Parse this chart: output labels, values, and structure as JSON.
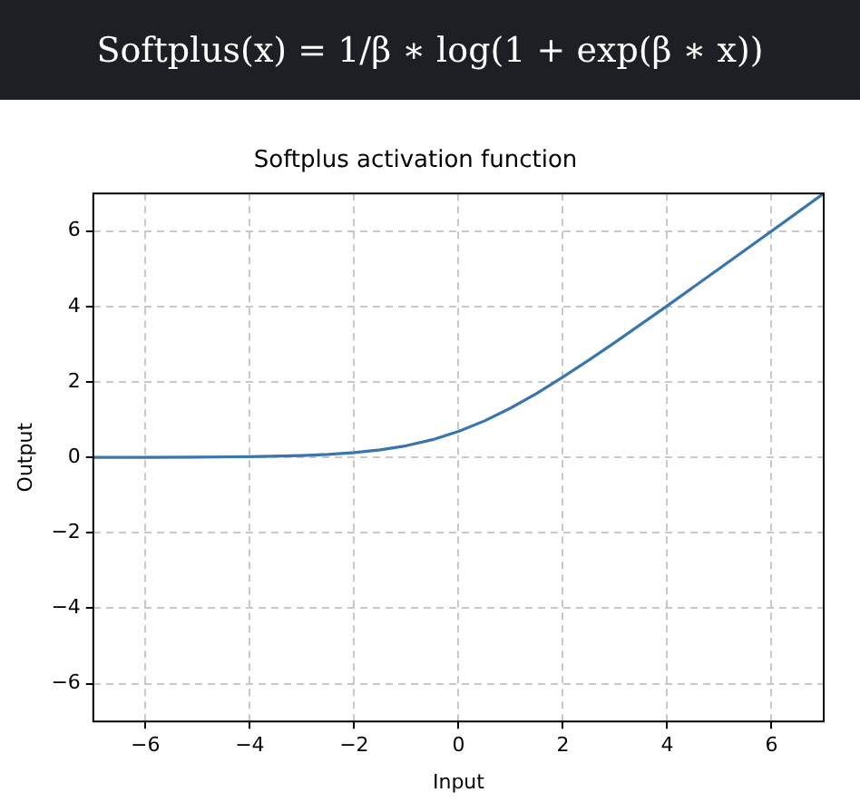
{
  "chart_data": {
    "type": "line",
    "title": "Softplus activation function",
    "xlabel": "Input",
    "ylabel": "Output",
    "annotations": [
      "Softplus(x) = 1/β ∗ log(1 + exp(β ∗ x))"
    ],
    "x": [
      -7,
      -6,
      -5,
      -4,
      -3,
      -2.5,
      -2,
      -1.5,
      -1,
      -0.5,
      0,
      0.5,
      1,
      1.5,
      2,
      2.5,
      3,
      4,
      5,
      6,
      7
    ],
    "series": [
      {
        "color": "#3b75af",
        "values": [
          0,
          0,
          0.01,
          0.02,
          0.05,
          0.08,
          0.13,
          0.2,
          0.31,
          0.47,
          0.69,
          0.97,
          1.31,
          1.7,
          2.13,
          2.58,
          3.05,
          4.02,
          5.01,
          6,
          7
        ]
      }
    ],
    "xlim": [
      -7,
      7
    ],
    "xticks": [
      -6,
      -4,
      -2,
      0,
      2,
      4,
      6
    ],
    "ylim": [
      -7,
      7
    ],
    "yticks": [
      -6,
      -4,
      -2,
      0,
      2,
      4,
      6
    ],
    "grid": true,
    "legend": false,
    "marker": "none",
    "line_style": "solid"
  }
}
